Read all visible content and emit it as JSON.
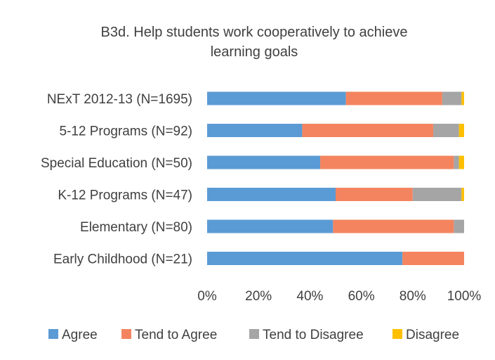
{
  "chart_data": {
    "type": "bar",
    "orientation": "horizontal",
    "stacked": true,
    "percent": true,
    "title_lines": [
      "B3d. Help students work cooperatively to achieve",
      "learning goals"
    ],
    "categories": [
      "NExT 2012-13  (N=1695)",
      "5-12 Programs  (N=92)",
      "Special Education  (N=50)",
      "K-12 Programs  (N=47)",
      "Elementary  (N=80)",
      "Early Childhood  (N=21)"
    ],
    "series": [
      {
        "name": "Agree",
        "color": "#5B9BD5",
        "values": [
          54,
          37,
          44,
          50,
          49,
          76
        ]
      },
      {
        "name": "Tend to Agree",
        "color": "#F4845F",
        "values": [
          37.5,
          51,
          52,
          30,
          47,
          24
        ]
      },
      {
        "name": "Tend to Disagree",
        "color": "#A5A5A5",
        "values": [
          7.5,
          10,
          2,
          19,
          4,
          0
        ]
      },
      {
        "name": "Disagree",
        "color": "#FFC000",
        "values": [
          1,
          2,
          2,
          1,
          0,
          0
        ]
      }
    ],
    "x_ticks": [
      "0%",
      "20%",
      "40%",
      "60%",
      "80%",
      "100%"
    ],
    "xlim": [
      0,
      100
    ],
    "grid": false,
    "legend_position": "bottom"
  }
}
